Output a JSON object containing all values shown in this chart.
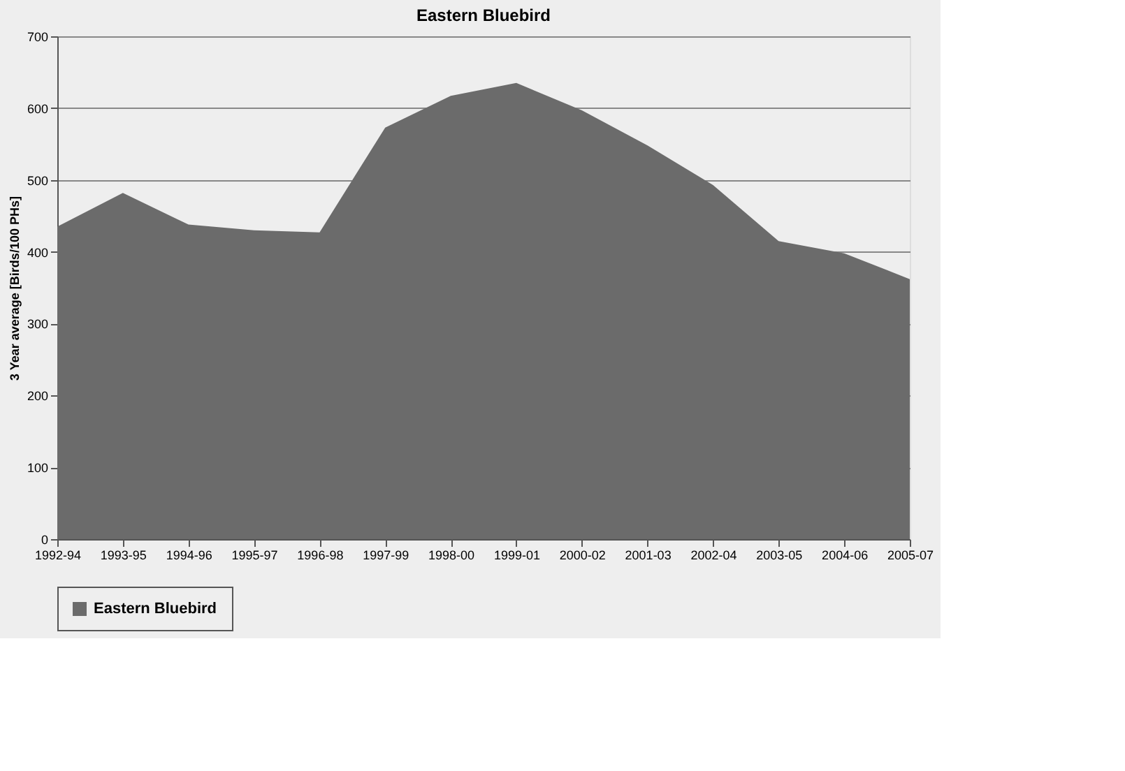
{
  "chart_data": {
    "type": "area",
    "title": "Eastern Bluebird",
    "ylabel": "3 Year average [Birds/100 PHs]",
    "categories": [
      "1992-94",
      "1993-95",
      "1994-96",
      "1995-97",
      "1996-98",
      "1997-99",
      "1998-00",
      "1999-01",
      "2000-02",
      "2001-03",
      "2002-04",
      "2003-05",
      "2004-06",
      "2005-07"
    ],
    "series": [
      {
        "name": "Eastern Bluebird",
        "color": "#6b6b6b",
        "values": [
          435,
          482,
          438,
          430,
          427,
          573,
          617,
          635,
          597,
          548,
          493,
          415,
          398,
          362
        ]
      }
    ],
    "ylim": [
      0,
      700
    ],
    "yticks": [
      0,
      100,
      200,
      300,
      400,
      500,
      600,
      700
    ],
    "grid": "y",
    "legend": "bottom"
  }
}
